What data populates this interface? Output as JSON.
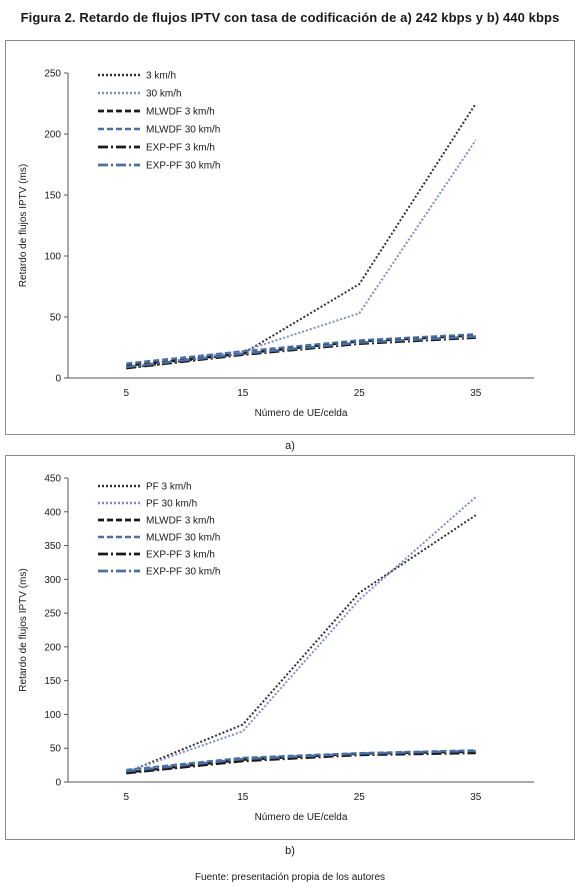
{
  "figure": {
    "title": "Figura 2. Retardo de flujos IPTV con tasa de codificación de a) 242 kbps y b) 440 kbps",
    "source": "Fuente: presentación propia de los autores"
  },
  "chart_data": [
    {
      "type": "line",
      "panel_label": "a)",
      "xlabel": "Número de UE/celda",
      "ylabel": "Retardo de flujos IPTV (ms)",
      "x": [
        5,
        15,
        25,
        35
      ],
      "xticks": [
        "5",
        "15",
        "25",
        "35"
      ],
      "ylim": [
        0,
        250
      ],
      "yticks": [
        0,
        50,
        100,
        150,
        200,
        250
      ],
      "grid": false,
      "legend_position": "top-left",
      "series": [
        {
          "name": "3 km/h",
          "values": [
            8,
            20,
            77,
            225
          ],
          "color": "#333333",
          "dash": "2,2",
          "width": 2
        },
        {
          "name": "30 km/h",
          "values": [
            9,
            22,
            53,
            195
          ],
          "color": "#7f8ec9",
          "dash": "2,2",
          "width": 2
        },
        {
          "name": "MLWDF 3 km/h",
          "values": [
            10,
            20,
            30,
            35
          ],
          "color": "#1a1a1a",
          "dash": "6,3",
          "width": 2.4
        },
        {
          "name": "MLWDF 30 km/h",
          "values": [
            12,
            22,
            31,
            36
          ],
          "color": "#4a6fa5",
          "dash": "6,3",
          "width": 2
        },
        {
          "name": "EXP-PF 3 km/h",
          "values": [
            8,
            19,
            28,
            33
          ],
          "color": "#1a1a1a",
          "dash": "10,3,2,3",
          "width": 2.4
        },
        {
          "name": "EXP-PF 30 km/h",
          "values": [
            9,
            20,
            29,
            34
          ],
          "color": "#4a6fa5",
          "dash": "10,3,2,3",
          "width": 2.4
        }
      ]
    },
    {
      "type": "line",
      "panel_label": "b)",
      "xlabel": "Número de UE/celda",
      "ylabel": "Retardo de flujos IPTV (ms)",
      "x": [
        5,
        15,
        25,
        35
      ],
      "xticks": [
        "5",
        "15",
        "25",
        "35"
      ],
      "ylim": [
        0,
        450
      ],
      "yticks": [
        0,
        50,
        100,
        150,
        200,
        250,
        300,
        350,
        400,
        450
      ],
      "grid": false,
      "legend_position": "top-left",
      "series": [
        {
          "name": "PF 3 km/h",
          "values": [
            14,
            85,
            280,
            395
          ],
          "color": "#333333",
          "dash": "2,2",
          "width": 2
        },
        {
          "name": "PF 30 km/h",
          "values": [
            15,
            75,
            270,
            422
          ],
          "color": "#7f8ec9",
          "dash": "2,2",
          "width": 2
        },
        {
          "name": "MLWDF 3 km/h",
          "values": [
            14,
            33,
            42,
            45
          ],
          "color": "#1a1a1a",
          "dash": "6,3",
          "width": 2.4
        },
        {
          "name": "MLWDF 30 km/h",
          "values": [
            18,
            36,
            43,
            47
          ],
          "color": "#4a6fa5",
          "dash": "6,3",
          "width": 2
        },
        {
          "name": "EXP-PF 3 km/h",
          "values": [
            13,
            31,
            40,
            43
          ],
          "color": "#1a1a1a",
          "dash": "10,3,2,3",
          "width": 2.4
        },
        {
          "name": "EXP-PF 30 km/h",
          "values": [
            16,
            34,
            42,
            46
          ],
          "color": "#4a6fa5",
          "dash": "10,3,2,3",
          "width": 2.4
        }
      ]
    }
  ]
}
